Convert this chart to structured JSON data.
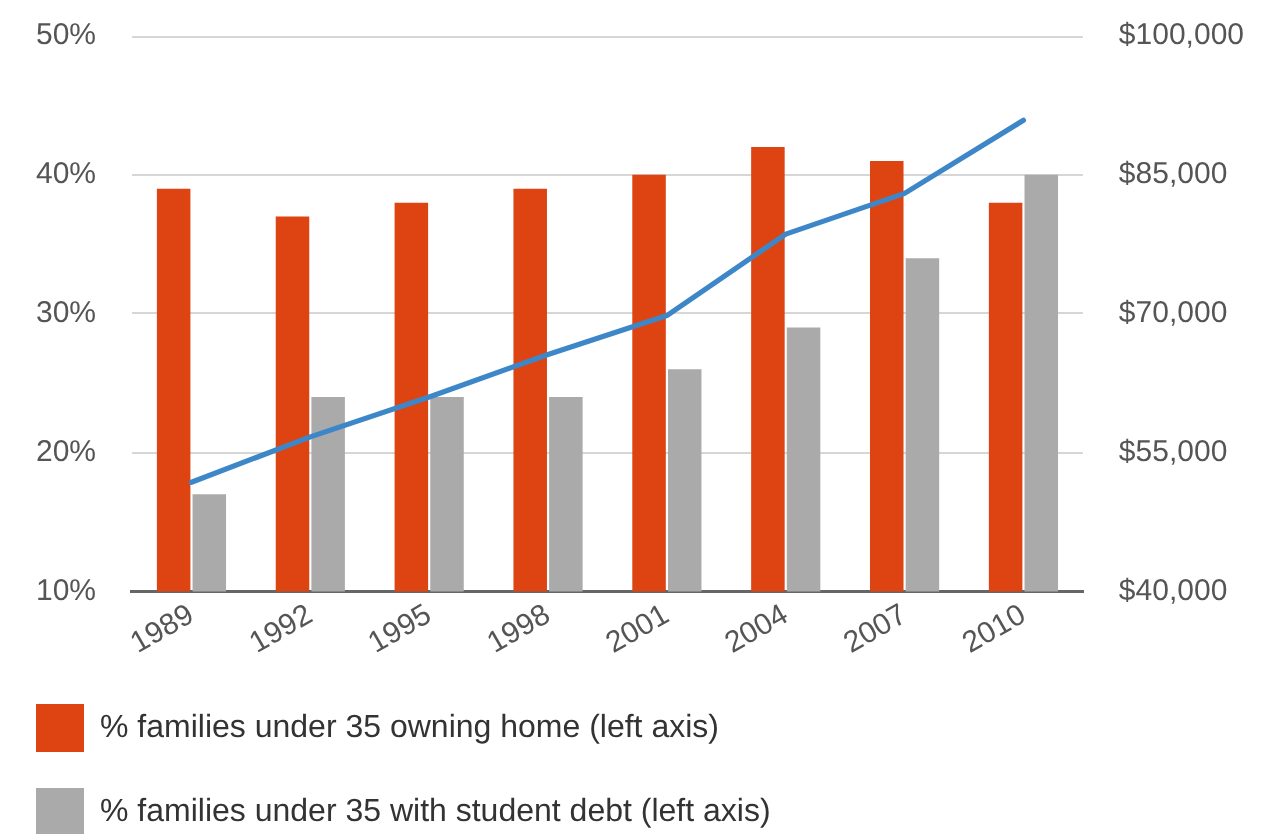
{
  "chart_data": {
    "type": "bar",
    "categories": [
      "1989",
      "1992",
      "1995",
      "1998",
      "2001",
      "2004",
      "2007",
      "2010"
    ],
    "series": [
      {
        "name": "% families under 35 owning home (left axis)",
        "color": "#dd4412",
        "values": [
          39,
          37,
          38,
          39,
          40,
          42,
          41,
          38
        ]
      },
      {
        "name": "% families under 35 with student debt (left axis)",
        "color": "#aaaaaa",
        "values": [
          17,
          24,
          24,
          24,
          26,
          29,
          34,
          40
        ]
      },
      {
        "type": "line",
        "axis": "y2",
        "color": "#3d87c9",
        "values": [
          51800,
          56700,
          61000,
          65600,
          69800,
          78600,
          83000,
          90900
        ]
      }
    ],
    "ylim": [
      10,
      50
    ],
    "yticks": [
      {
        "value": 10,
        "label": "10%"
      },
      {
        "value": 20,
        "label": "20%"
      },
      {
        "value": 30,
        "label": "30%"
      },
      {
        "value": 40,
        "label": "40%"
      },
      {
        "value": 50,
        "label": "50%"
      }
    ],
    "y2lim": [
      40000,
      100000
    ],
    "y2ticks": [
      {
        "value": 40000,
        "label": "$40,000"
      },
      {
        "value": 55000,
        "label": "$55,000"
      },
      {
        "value": 70000,
        "label": "$70,000"
      },
      {
        "value": 85000,
        "label": "$85,000"
      },
      {
        "value": 100000,
        "label": "$100,000"
      }
    ],
    "grid": "y",
    "legend": "bottom left",
    "marker": "none"
  }
}
